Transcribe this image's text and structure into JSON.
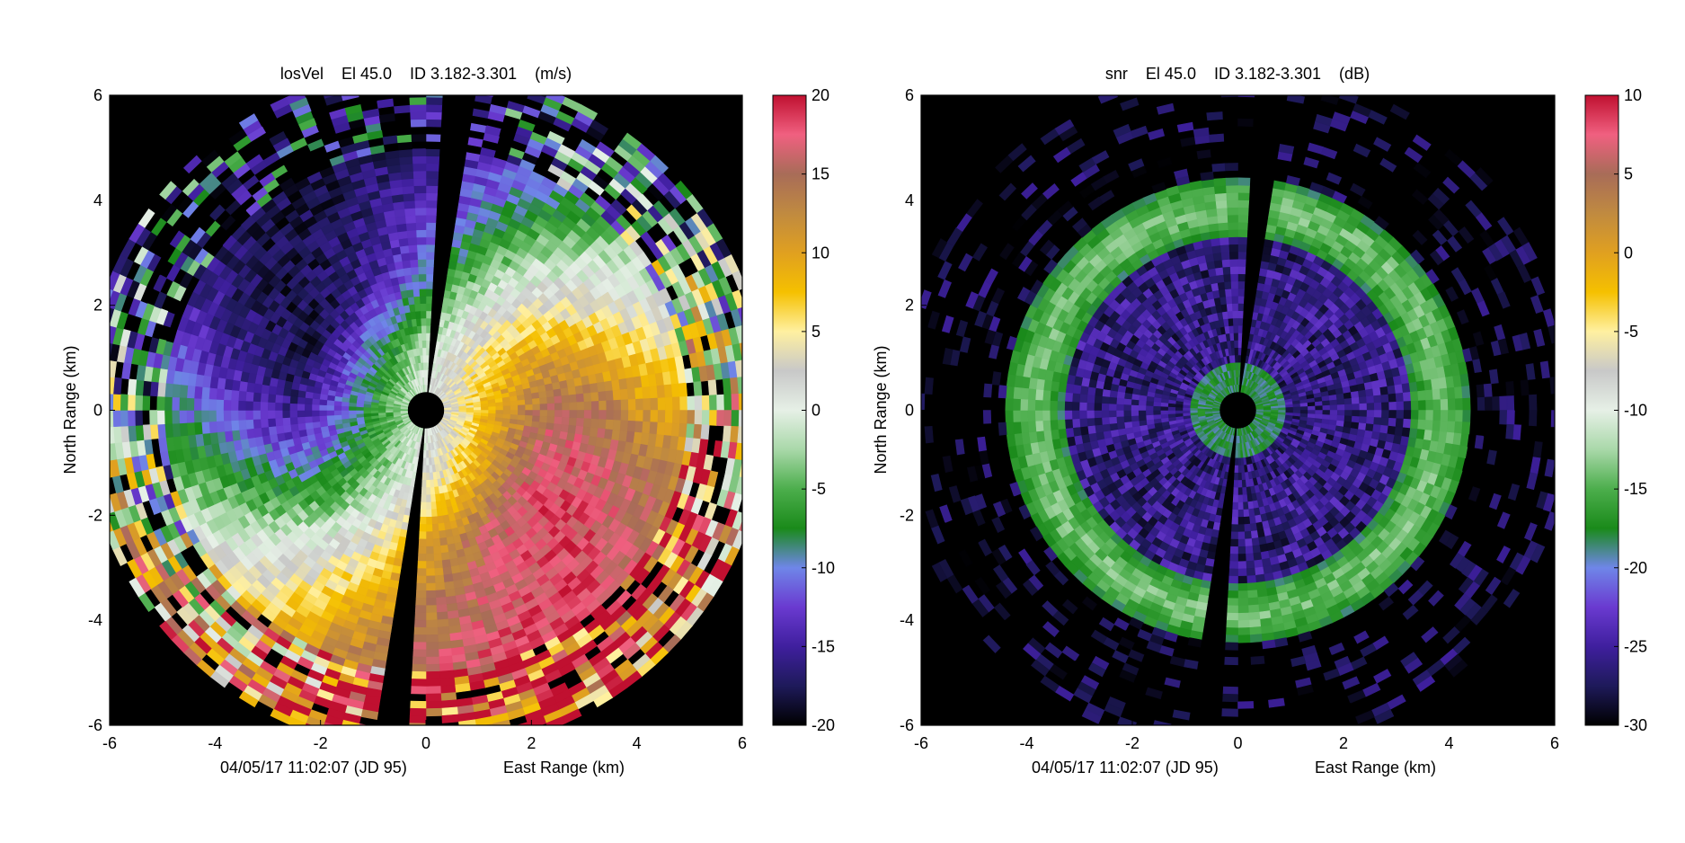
{
  "chart_data": [
    {
      "type": "heatmap",
      "title": "losVel    El 45.0    ID 3.182-3.301    (m/s)",
      "xlabel": "East Range (km)",
      "ylabel": "North Range (km)",
      "timestamp": "04/05/17 11:02:07 (JD 95)",
      "xlim": [
        -6,
        6
      ],
      "ylim": [
        -6,
        6
      ],
      "xticks": [
        -6,
        -4,
        -2,
        0,
        2,
        4,
        6
      ],
      "yticks": [
        -6,
        -4,
        -2,
        0,
        2,
        4,
        6
      ],
      "colorbar": {
        "min": -20,
        "max": 20,
        "ticks": [
          -20,
          -15,
          -10,
          -5,
          0,
          5,
          10,
          15,
          20
        ],
        "unit": "m/s"
      },
      "data_radius_km": 6.5,
      "blind_radius_km": 0.35,
      "gap_azimuth_deg": [
        3,
        8
      ],
      "field": "velocity",
      "velocity_max": 18,
      "velocity_phase_deg": 0
    },
    {
      "type": "heatmap",
      "title": "snr    El 45.0    ID 3.182-3.301    (dB)",
      "xlabel": "East Range (km)",
      "ylabel": "North Range (km)",
      "timestamp": "04/05/17 11:02:07 (JD 95)",
      "xlim": [
        -6,
        6
      ],
      "ylim": [
        -6,
        6
      ],
      "xticks": [
        -6,
        -4,
        -2,
        0,
        2,
        4,
        6
      ],
      "yticks": [
        -6,
        -4,
        -2,
        0,
        2,
        4,
        6
      ],
      "colorbar": {
        "min": -30,
        "max": 10,
        "ticks": [
          -30,
          -25,
          -20,
          -15,
          -10,
          -5,
          0,
          5,
          10
        ],
        "unit": "dB"
      },
      "data_radius_km": 6.5,
      "blind_radius_km": 0.35,
      "gap_azimuth_deg": [
        3,
        8
      ],
      "field": "snr",
      "ring_km": [
        3.3,
        4.4
      ],
      "ring_snr_db": -18,
      "inner_snr_db": -26
    }
  ],
  "colormap": [
    "#000000",
    "#1e1a5a",
    "#3f1f9e",
    "#6a3ad0",
    "#6f86e8",
    "#1a8a1a",
    "#4cae4c",
    "#a9d8a9",
    "#e6f0e6",
    "#c8c8c8",
    "#fff0a0",
    "#f5c000",
    "#e0a020",
    "#c08a40",
    "#a86c58",
    "#f06080",
    "#c01030"
  ]
}
